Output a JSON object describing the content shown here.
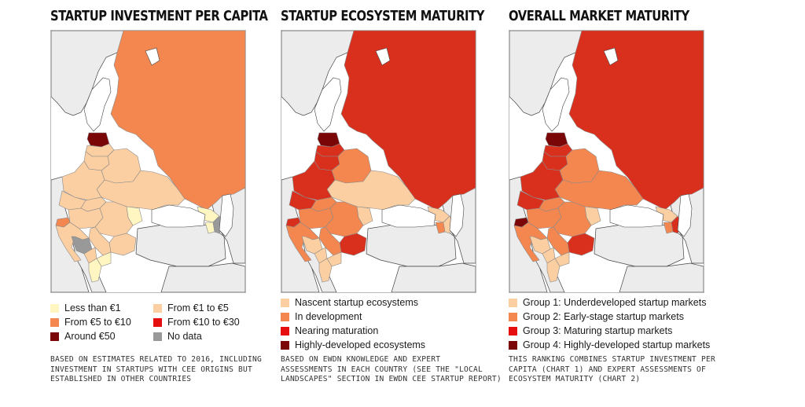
{
  "panels": [
    {
      "title": "STARTUP INVESTMENT PER CAPITA",
      "legend": [
        {
          "label": "Less than €1",
          "color": "#fff6c2"
        },
        {
          "label": "From €1 to €5",
          "color": "#fbcfa2"
        },
        {
          "label": "From €5 to €10",
          "color": "#f4874f"
        },
        {
          "label": "From €10 to €30",
          "color": "#e50f0f"
        },
        {
          "label": "Around €50",
          "color": "#7a0608"
        },
        {
          "label": "No data",
          "color": "#999999"
        }
      ],
      "note": [
        "BASED ON ESTIMATES RELATED TO 2016, INCLUDING",
        "INVESTMENT IN STARTUPS WITH CEE ORIGINS BUT",
        "ESTABLISHED IN OTHER COUNTRIES"
      ]
    },
    {
      "title": "STARTUP ECOSYSTEM MATURITY",
      "legend": [
        {
          "label": "Nascent startup ecosystems",
          "color": "#fbcfa2"
        },
        {
          "label": "In development",
          "color": "#f4874f"
        },
        {
          "label": "Nearing maturation",
          "color": "#e50f0f"
        },
        {
          "label": "Highly-developed ecosystems",
          "color": "#7a0608"
        }
      ],
      "note": [
        "BASED ON EWDN KNOWLEDGE AND EXPERT",
        "ASSESSMENTS IN EACH COUNTRY (SEE THE \"LOCAL",
        "LANDSCAPES\" SECTION IN EWDN CEE STARTUP REPORT)"
      ]
    },
    {
      "title": "OVERALL MARKET MATURITY",
      "legend": [
        {
          "label": "Group 1: Underdeveloped startup markets",
          "color": "#fbcfa2"
        },
        {
          "label": "Group 2: Early-stage startup markets",
          "color": "#f4874f"
        },
        {
          "label": "Group 3: Maturing startup markets",
          "color": "#e50f0f"
        },
        {
          "label": "Group 4: Highly-developed startup markets",
          "color": "#7a0608"
        }
      ],
      "note": [
        "THIS RANKING COMBINES STARTUP INVESTMENT PER",
        "CAPITA (CHART 1) AND EXPERT ASSESSMENTS OF",
        "ECOSYSTEM MATURITY (CHART 2)"
      ]
    }
  ],
  "map_colors": {
    "background_land": "#ececec",
    "background_border": "#444444",
    "country_border": "#8a8a8a",
    "panel1": {
      "russia": "#f4874f",
      "baltic_est": "#7a0608",
      "baltic_lat": "#fbcfa2",
      "baltic_lit": "#fbcfa2",
      "belarus": "#fbcfa2",
      "ukraine": "#fbcfa2",
      "poland": "#fbcfa2",
      "czech": "#fbcfa2",
      "slovakia": "#fbcfa2",
      "hungary": "#fbcfa2",
      "romania": "#fbcfa2",
      "moldova": "#fff6c2",
      "bulgaria": "#fbcfa2",
      "serbia": "#fbcfa2",
      "croatia": "#fbcfa2",
      "slovenia": "#f4874f",
      "bosnia": "#999999",
      "montenegro": "#fbcfa2",
      "macedonia": "#fff6c2",
      "albania": "#fff6c2",
      "georgia": "#fff6c2",
      "armenia": "#fff6c2",
      "azerbaijan": "#999999"
    },
    "panel2": {
      "russia": "#d9301e",
      "baltic_est": "#7a0608",
      "baltic_lat": "#d9301e",
      "baltic_lit": "#d9301e",
      "belarus": "#f4874f",
      "ukraine": "#fbcfa2",
      "poland": "#d9301e",
      "czech": "#d9301e",
      "slovakia": "#f4874f",
      "hungary": "#f4874f",
      "romania": "#f4874f",
      "moldova": "#fbcfa2",
      "bulgaria": "#d9301e",
      "serbia": "#f4874f",
      "croatia": "#f4874f",
      "slovenia": "#d9301e",
      "bosnia": "#fbcfa2",
      "montenegro": "#fbcfa2",
      "macedonia": "#fbcfa2",
      "albania": "#fbcfa2",
      "georgia": "#fbcfa2",
      "armenia": "#f4874f",
      "azerbaijan": "#fbcfa2"
    },
    "panel3": {
      "russia": "#d9301e",
      "baltic_est": "#7a0608",
      "baltic_lat": "#d9301e",
      "baltic_lit": "#d9301e",
      "belarus": "#f4874f",
      "ukraine": "#f4874f",
      "poland": "#d9301e",
      "czech": "#d9301e",
      "slovakia": "#f4874f",
      "hungary": "#f4874f",
      "romania": "#f4874f",
      "moldova": "#fbcfa2",
      "bulgaria": "#d9301e",
      "serbia": "#f4874f",
      "croatia": "#f4874f",
      "slovenia": "#7a0608",
      "bosnia": "#fbcfa2",
      "montenegro": "#fbcfa2",
      "macedonia": "#fbcfa2",
      "albania": "#fbcfa2",
      "georgia": "#fbcfa2",
      "armenia": "#f4874f",
      "azerbaijan": "#d9301e"
    }
  }
}
